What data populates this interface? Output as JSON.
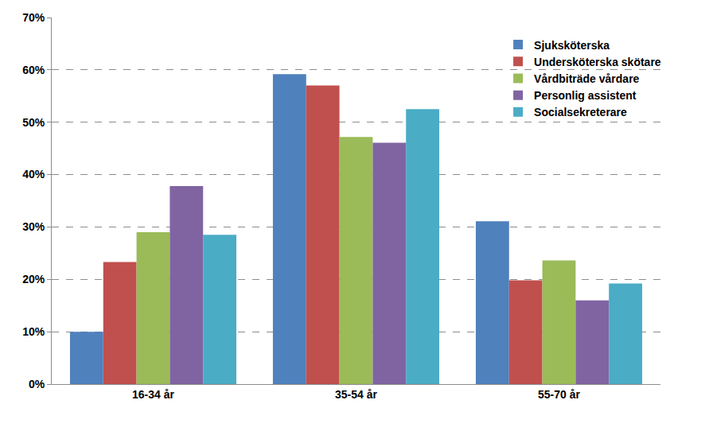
{
  "chart_data": {
    "type": "bar",
    "categories": [
      "16-34 år",
      "35-54 år",
      "55-70 år"
    ],
    "series": [
      {
        "name": "Sjuksköterska",
        "color": "#4F81BD",
        "values": [
          10,
          59.2,
          31.1
        ]
      },
      {
        "name": "Undersköterska skötare",
        "color": "#C0504D",
        "values": [
          23.3,
          57,
          19.8
        ]
      },
      {
        "name": "Vårdbiträde vårdare",
        "color": "#9BBB59",
        "values": [
          29,
          47.2,
          23.6
        ]
      },
      {
        "name": "Personlig assistent",
        "color": "#8064A2",
        "values": [
          37.8,
          46.1,
          16
        ]
      },
      {
        "name": "Socialsekreterare",
        "color": "#4BACC6",
        "values": [
          28.5,
          52.5,
          19.2
        ]
      }
    ],
    "ylim": [
      0,
      70
    ],
    "yticks": [
      {
        "value": 0,
        "label": "0%"
      },
      {
        "value": 10,
        "label": "10%"
      },
      {
        "value": 20,
        "label": "20%"
      },
      {
        "value": 30,
        "label": "30%"
      },
      {
        "value": 40,
        "label": "40%"
      },
      {
        "value": 50,
        "label": "50%"
      },
      {
        "value": 60,
        "label": "60%"
      },
      {
        "value": 70,
        "label": "70%"
      }
    ],
    "grid": true,
    "legend": "top right"
  }
}
